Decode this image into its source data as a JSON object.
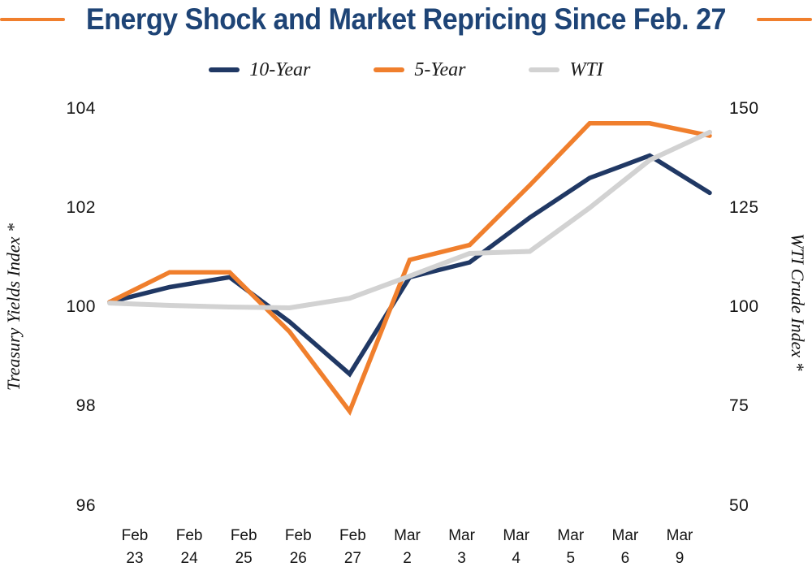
{
  "title": "Energy Shock and Market Repricing Since Feb. 27",
  "decor": {
    "rule_color": "#F07F2D"
  },
  "legend": {
    "items": [
      {
        "label": "10-Year",
        "color": "#203864"
      },
      {
        "label": "5-Year",
        "color": "#F07F2D"
      },
      {
        "label": "WTI",
        "color": "#D2D2D2"
      }
    ]
  },
  "axes": {
    "left": {
      "title": "Treasury Yields Index *",
      "ticks": [
        "104",
        "102",
        "100",
        "98",
        "96"
      ]
    },
    "right": {
      "title": "WTI Crude Index *",
      "ticks": [
        "150",
        "125",
        "100",
        "75",
        "50"
      ]
    }
  },
  "chart_data": {
    "type": "line",
    "title": "Energy Shock and Market Repricing Since Feb. 27",
    "categories": [
      "Feb 23",
      "Feb 24",
      "Feb 25",
      "Feb 26",
      "Feb 27",
      "Mar 2",
      "Mar 3",
      "Mar 4",
      "Mar 5",
      "Mar 6",
      "Mar 9"
    ],
    "series": [
      {
        "name": "10-Year",
        "axis": "left",
        "color": "#203864",
        "values": [
          100.1,
          100.4,
          100.6,
          99.7,
          98.65,
          100.6,
          100.9,
          101.8,
          102.6,
          103.05,
          102.3
        ]
      },
      {
        "name": "5-Year",
        "axis": "left",
        "color": "#F07F2D",
        "values": [
          100.1,
          100.7,
          100.7,
          99.5,
          97.9,
          100.95,
          101.25,
          102.45,
          103.7,
          103.7,
          103.45
        ]
      },
      {
        "name": "WTI",
        "axis": "right",
        "color": "#D2D2D2",
        "values": [
          101,
          100.4,
          100,
          99.8,
          102.2,
          107.8,
          113.5,
          114,
          125,
          137,
          144
        ]
      }
    ],
    "left_ylabel": "Treasury Yields Index *",
    "right_ylabel": "WTI Crude Index *",
    "left_ylim": [
      96,
      104
    ],
    "right_ylim": [
      50,
      150
    ],
    "left_ticks": [
      104,
      102,
      100,
      98,
      96
    ],
    "right_ticks": [
      150,
      125,
      100,
      75,
      50
    ],
    "grid": false,
    "axis_lines": false,
    "legend_position": "top"
  }
}
